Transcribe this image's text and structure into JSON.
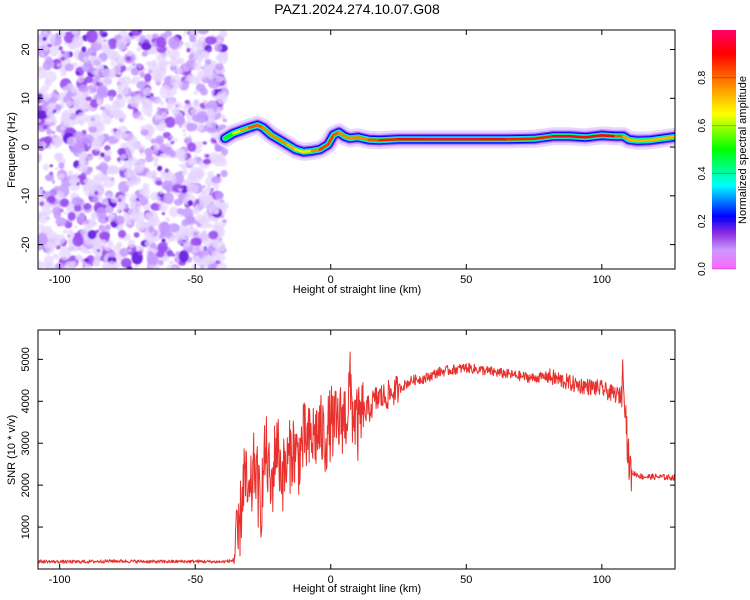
{
  "chart_data": [
    {
      "type": "heatmap",
      "title": "PAZ1.2024.274.10.07.G08",
      "xlabel": "Height of straight line (km)",
      "ylabel": "Frequency (Hz)",
      "xlim": [
        -108,
        127
      ],
      "ylim": [
        -25,
        24
      ],
      "x_ticks": [
        -100,
        -50,
        0,
        50,
        100
      ],
      "x_tick_labels": [
        "-100",
        "-50",
        "0",
        "50",
        "100"
      ],
      "y_ticks": [
        -20,
        -10,
        0,
        10,
        20
      ],
      "y_tick_labels": [
        "-20",
        "-10",
        "0",
        "10",
        "20"
      ],
      "colorbar": {
        "label": "Normalized spectral amplitude",
        "range": [
          0,
          1
        ],
        "ticks": [
          0.0,
          0.2,
          0.4,
          0.6,
          0.8
        ],
        "tick_labels": [
          "0.0",
          "0.2",
          "0.4",
          "0.6",
          "0.8"
        ],
        "colors": [
          "#ff66ff",
          "#cc99ff",
          "#8a2be2",
          "#0000ff",
          "#00ffff",
          "#00ff00",
          "#ffff00",
          "#ff8000",
          "#ff0000",
          "#ff0066"
        ]
      },
      "noise_region": {
        "x_range": [
          -108,
          -39
        ],
        "y_range": [
          -25,
          24
        ]
      },
      "ridge": {
        "x": [
          -39,
          -36,
          -33,
          -30,
          -27,
          -25,
          -22,
          -19,
          -16,
          -13,
          -10,
          -7,
          -4,
          -1,
          1,
          3,
          5,
          7,
          10,
          14,
          18,
          25,
          35,
          45,
          55,
          65,
          75,
          82,
          88,
          94,
          100,
          105,
          108,
          110,
          113,
          118,
          123,
          127
        ],
        "y": [
          1.8,
          2.8,
          3.4,
          4.0,
          4.5,
          4.0,
          2.5,
          1.5,
          0.5,
          -0.5,
          -1.0,
          -0.8,
          -0.5,
          0.5,
          2.5,
          3.0,
          2.2,
          1.8,
          2.0,
          1.5,
          1.4,
          1.6,
          1.6,
          1.6,
          1.6,
          1.6,
          1.7,
          2.2,
          2.2,
          2.0,
          2.4,
          2.2,
          2.2,
          1.5,
          1.3,
          1.4,
          1.8,
          2.1
        ],
        "amp": [
          0.45,
          0.55,
          0.7,
          0.8,
          0.85,
          0.8,
          0.75,
          0.8,
          0.75,
          0.7,
          0.65,
          0.7,
          0.85,
          0.85,
          0.85,
          0.8,
          0.75,
          0.8,
          0.75,
          0.8,
          0.85,
          0.9,
          0.95,
          0.95,
          0.95,
          0.9,
          0.85,
          0.9,
          0.95,
          0.9,
          0.95,
          0.85,
          0.8,
          0.7,
          0.75,
          0.7,
          0.75,
          0.7
        ]
      }
    },
    {
      "type": "line",
      "xlabel": "Height of straight line (km)",
      "ylabel": "SNR (10 * v/v)",
      "xlim": [
        -108,
        127
      ],
      "ylim": [
        0,
        5700
      ],
      "x_ticks": [
        -100,
        -50,
        0,
        50,
        100
      ],
      "x_tick_labels": [
        "-100",
        "-50",
        "0",
        "50",
        "100"
      ],
      "y_ticks": [
        1000,
        2000,
        3000,
        4000,
        5000
      ],
      "y_tick_labels": [
        "1000",
        "2000",
        "3000",
        "4000",
        "5000"
      ],
      "series": [
        {
          "color": "#e8302c",
          "x": [
            -108,
            -95,
            -80,
            -65,
            -50,
            -40,
            -36,
            -34,
            -32,
            -30,
            -28,
            -26,
            -24,
            -22,
            -20,
            -18,
            -16,
            -14,
            -12,
            -10,
            -8,
            -6,
            -4,
            -2,
            0,
            2,
            4,
            6,
            7,
            8,
            10,
            12,
            14,
            16,
            18,
            20,
            25,
            30,
            35,
            40,
            45,
            50,
            55,
            60,
            65,
            70,
            75,
            80,
            85,
            90,
            95,
            100,
            103,
            106,
            107,
            108,
            109,
            110,
            111,
            115,
            120,
            127
          ],
          "y": [
            180,
            170,
            190,
            175,
            180,
            170,
            200,
            700,
            2300,
            1500,
            2600,
            1400,
            2900,
            1800,
            3100,
            2200,
            2500,
            2900,
            2600,
            3100,
            3000,
            3200,
            3300,
            3100,
            3500,
            3400,
            3600,
            3700,
            4400,
            3800,
            3400,
            3700,
            3800,
            4000,
            4100,
            4100,
            4300,
            4500,
            4550,
            4700,
            4750,
            4800,
            4750,
            4700,
            4650,
            4600,
            4550,
            4600,
            4500,
            4400,
            4350,
            4300,
            4200,
            4150,
            4100,
            4800,
            3500,
            2500,
            2300,
            2200,
            2200,
            2180
          ]
        }
      ]
    }
  ]
}
